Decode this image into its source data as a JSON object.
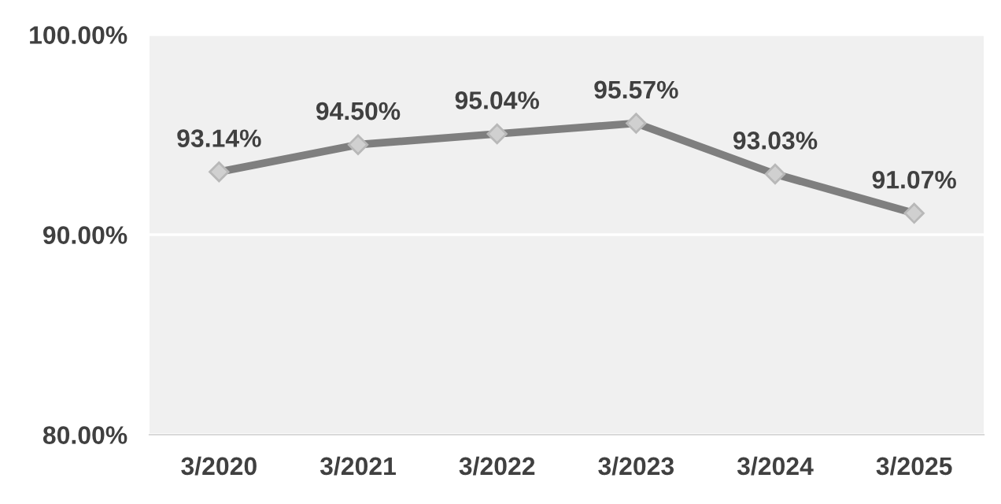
{
  "chart_data": {
    "type": "line",
    "categories": [
      "3/2020",
      "3/2021",
      "3/2022",
      "3/2023",
      "3/2024",
      "3/2025"
    ],
    "series": [
      {
        "color": "#7f7f7f",
        "values": [
          93.14,
          94.5,
          95.04,
          95.57,
          93.03,
          91.07
        ],
        "value_labels": [
          "93.14%",
          "94.50%",
          "95.04%",
          "95.57%",
          "93.03%",
          "91.07%"
        ]
      }
    ],
    "ylim": [
      80,
      100
    ],
    "yticks": [
      {
        "value": 80,
        "label": "80.00%"
      },
      {
        "value": 90,
        "label": "90.00%"
      },
      {
        "value": 100,
        "label": "100.00%"
      }
    ],
    "grid": "y",
    "marker": "diamond",
    "line_style": "solid",
    "legend": false
  }
}
